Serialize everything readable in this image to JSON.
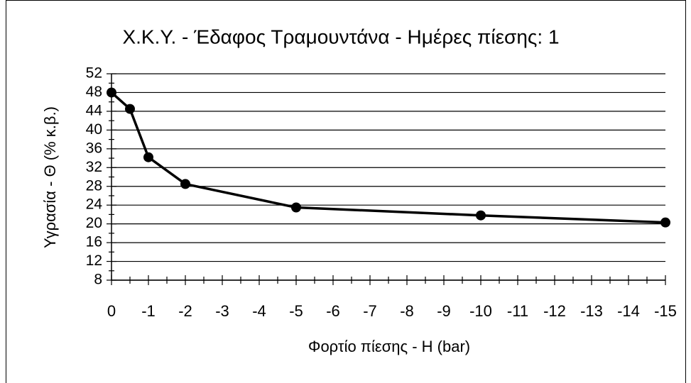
{
  "chart_data": {
    "type": "line",
    "title": "Χ.Κ.Υ. - Έδαφος Τραμουντάνα - Ημέρες πίεσης: 1",
    "x_label": "Φορτίο πίεσης - H (bar)",
    "y_label": "Υγρασία - Θ (% κ.β.)",
    "x": [
      0,
      -0.5,
      -1,
      -2,
      -5,
      -10,
      -15
    ],
    "series": [
      {
        "name": "Θ",
        "color": "#000000",
        "values": [
          48,
          44.5,
          34.2,
          28.5,
          23.5,
          21.8,
          20.3
        ]
      }
    ],
    "xlim": [
      0,
      -15
    ],
    "xticks": [
      0,
      -1,
      -2,
      -3,
      -4,
      -5,
      -6,
      -7,
      -8,
      -9,
      -10,
      -11,
      -12,
      -13,
      -14,
      -15
    ],
    "ylim": [
      8,
      52
    ],
    "yticks": [
      8,
      12,
      16,
      20,
      24,
      28,
      32,
      36,
      40,
      44,
      48,
      52
    ],
    "grid": true
  }
}
